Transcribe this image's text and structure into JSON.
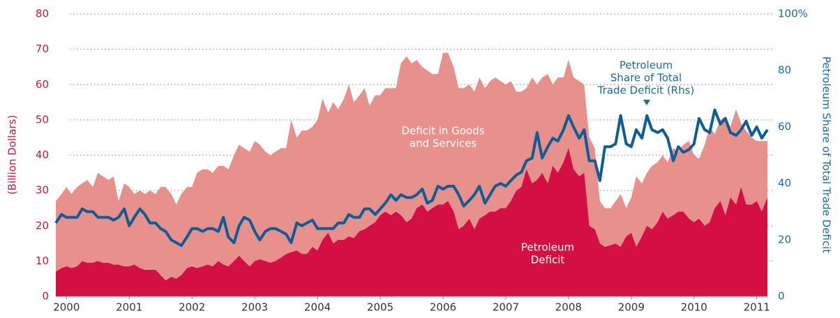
{
  "chart_data": {
    "type": "area",
    "y_label": "(Billion Dollars)",
    "y2_label": "Petroleum Share of Total Trade Deficit",
    "annotations": [
      {
        "lines": [
          "Deficit in Goods",
          "and Services"
        ]
      },
      {
        "lines": [
          "Petroleum",
          "Deficit"
        ]
      },
      {
        "lines": [
          "Petroleum",
          "Share of Total",
          "Trade Deficit (Rhs)"
        ]
      }
    ],
    "xlim": [
      2000.33,
      2011.67
    ],
    "xticks": [
      {
        "value": 2000.5,
        "label": "2000"
      },
      {
        "value": 2001.5,
        "label": "2001"
      },
      {
        "value": 2002.5,
        "label": "2002"
      },
      {
        "value": 2003.5,
        "label": "2003"
      },
      {
        "value": 2004.5,
        "label": "2004"
      },
      {
        "value": 2005.5,
        "label": "2005"
      },
      {
        "value": 2006.5,
        "label": "2006"
      },
      {
        "value": 2007.5,
        "label": "2007"
      },
      {
        "value": 2008.5,
        "label": "2008"
      },
      {
        "value": 2009.5,
        "label": "2009"
      },
      {
        "value": 2010.5,
        "label": "2010"
      },
      {
        "value": 2011.5,
        "label": "2011"
      }
    ],
    "ylim": [
      0,
      80
    ],
    "yticks": [
      0,
      10,
      20,
      30,
      40,
      50,
      60,
      70,
      80
    ],
    "y2lim": [
      0,
      100
    ],
    "y2ticks": [
      0,
      20,
      40,
      60,
      80,
      {
        "value": 100,
        "label": "100%"
      }
    ],
    "grid": true,
    "x": [
      2000.33,
      2000.42,
      2000.5,
      2000.58,
      2000.67,
      2000.75,
      2000.83,
      2000.92,
      2001,
      2001.08,
      2001.17,
      2001.25,
      2001.33,
      2001.42,
      2001.5,
      2001.58,
      2001.67,
      2001.75,
      2001.83,
      2001.92,
      2002,
      2002.08,
      2002.17,
      2002.25,
      2002.33,
      2002.42,
      2002.5,
      2002.58,
      2002.67,
      2002.75,
      2002.83,
      2002.92,
      2003,
      2003.08,
      2003.17,
      2003.25,
      2003.33,
      2003.42,
      2003.5,
      2003.58,
      2003.67,
      2003.75,
      2003.83,
      2003.92,
      2004,
      2004.08,
      2004.17,
      2004.25,
      2004.33,
      2004.42,
      2004.5,
      2004.58,
      2004.67,
      2004.75,
      2004.83,
      2004.92,
      2005,
      2005.08,
      2005.17,
      2005.25,
      2005.33,
      2005.42,
      2005.5,
      2005.58,
      2005.67,
      2005.75,
      2005.83,
      2005.92,
      2006,
      2006.08,
      2006.17,
      2006.25,
      2006.33,
      2006.42,
      2006.5,
      2006.58,
      2006.67,
      2006.75,
      2006.83,
      2006.92,
      2007,
      2007.08,
      2007.17,
      2007.25,
      2007.33,
      2007.42,
      2007.5,
      2007.58,
      2007.67,
      2007.75,
      2007.83,
      2007.92,
      2008,
      2008.08,
      2008.17,
      2008.25,
      2008.33,
      2008.42,
      2008.5,
      2008.58,
      2008.67,
      2008.75,
      2008.83,
      2008.92,
      2009,
      2009.08,
      2009.17,
      2009.25,
      2009.33,
      2009.42,
      2009.5,
      2009.58,
      2009.67,
      2009.75,
      2009.83,
      2009.92,
      2010,
      2010.08,
      2010.17,
      2010.25,
      2010.33,
      2010.42,
      2010.5,
      2010.58,
      2010.67,
      2010.75,
      2010.83,
      2010.92,
      2011,
      2011.08,
      2011.17,
      2011.25,
      2011.33,
      2011.42,
      2011.5,
      2011.58,
      2011.67
    ],
    "series": [
      {
        "type": "area",
        "color": "#e8908c",
        "values": [
          27,
          29,
          31,
          29,
          31,
          32,
          33,
          31,
          35,
          34,
          33,
          34,
          27,
          32,
          31,
          29,
          30,
          29,
          30,
          29,
          31,
          31,
          29,
          26,
          29,
          31,
          31,
          35,
          36,
          36,
          35,
          37,
          37,
          36,
          40,
          43,
          42,
          41,
          44,
          43,
          41,
          40,
          41,
          42,
          42,
          50,
          45,
          47,
          47,
          48,
          50,
          56,
          52,
          55,
          53,
          56,
          60,
          55,
          57,
          59,
          54,
          57,
          57,
          59,
          59,
          59,
          66,
          68,
          66,
          67,
          65,
          64,
          63,
          63,
          69,
          69,
          65,
          59,
          59,
          60,
          58,
          62,
          59,
          61,
          62,
          61,
          60,
          61,
          58,
          58,
          59,
          62,
          60,
          62,
          63,
          60,
          62,
          62,
          67,
          62,
          61,
          60,
          45,
          42,
          27,
          25,
          25,
          27,
          29,
          25,
          28,
          34,
          32,
          35,
          37,
          38,
          40,
          38,
          42,
          41,
          43,
          44,
          40,
          39,
          43,
          48,
          46,
          50,
          51,
          48,
          53,
          49,
          47,
          45,
          44,
          44,
          44
        ]
      },
      {
        "type": "area",
        "color": "#d30f44",
        "values": [
          7,
          8,
          8.5,
          8,
          8.5,
          10,
          9.5,
          9.5,
          10,
          9.5,
          9.5,
          9,
          9,
          8.5,
          8.5,
          9,
          8,
          7.5,
          7.5,
          7.5,
          6,
          4.5,
          5.5,
          5,
          6,
          8,
          8.5,
          8,
          8.5,
          9,
          8.5,
          10,
          9,
          8.5,
          10,
          11.5,
          10,
          8.5,
          10,
          10.5,
          10,
          9.5,
          10,
          11,
          12,
          12.5,
          13,
          12,
          12,
          14,
          13,
          16,
          18,
          15,
          16,
          16,
          17,
          16.5,
          18.5,
          19,
          20,
          21,
          23,
          24,
          23,
          24,
          23,
          21,
          22,
          25,
          26,
          24,
          25,
          26,
          26,
          27,
          24,
          19,
          20,
          22,
          19,
          22,
          23,
          24,
          24,
          25,
          25,
          27,
          30,
          31,
          36,
          32,
          33,
          35,
          32,
          37,
          35,
          38,
          42,
          36,
          34,
          35,
          20,
          19,
          15,
          14,
          14.5,
          15,
          14,
          17,
          18,
          14,
          17,
          20,
          19,
          21,
          24,
          22,
          23,
          24,
          24,
          22,
          21,
          22,
          20,
          21,
          25,
          27,
          23,
          28,
          26,
          31,
          26,
          26,
          27,
          24,
          28
        ]
      },
      {
        "type": "line",
        "axis": "y2",
        "color": "#0e5d96",
        "values": [
          26,
          29,
          28,
          28,
          28,
          31,
          30,
          30,
          28,
          28,
          28,
          27,
          28,
          31,
          25,
          28,
          31,
          29,
          26,
          26,
          24,
          23,
          20,
          19,
          18,
          21,
          24,
          24,
          23,
          24,
          24,
          23,
          28,
          21,
          19,
          25,
          28,
          27,
          23,
          20,
          23,
          24,
          24,
          23,
          22,
          19,
          26,
          25,
          26,
          27,
          24,
          24,
          24,
          24,
          26,
          26,
          29,
          28,
          28,
          31,
          31,
          29,
          31,
          33,
          36,
          34,
          36,
          35,
          35,
          36,
          38,
          33,
          34,
          39,
          38,
          39,
          39,
          36,
          32,
          34,
          36,
          39,
          33,
          36,
          39,
          40,
          39,
          41,
          43,
          44,
          48,
          49,
          58,
          49,
          53,
          56,
          55,
          59,
          64,
          60,
          56,
          59,
          48,
          48,
          41,
          53,
          53,
          54,
          64,
          54,
          53,
          59,
          56,
          64,
          59,
          58,
          59,
          56,
          48,
          53,
          51,
          52,
          54,
          63,
          59,
          58,
          66,
          61,
          63,
          58,
          57,
          59,
          62,
          57,
          60,
          56,
          59
        ]
      }
    ]
  }
}
